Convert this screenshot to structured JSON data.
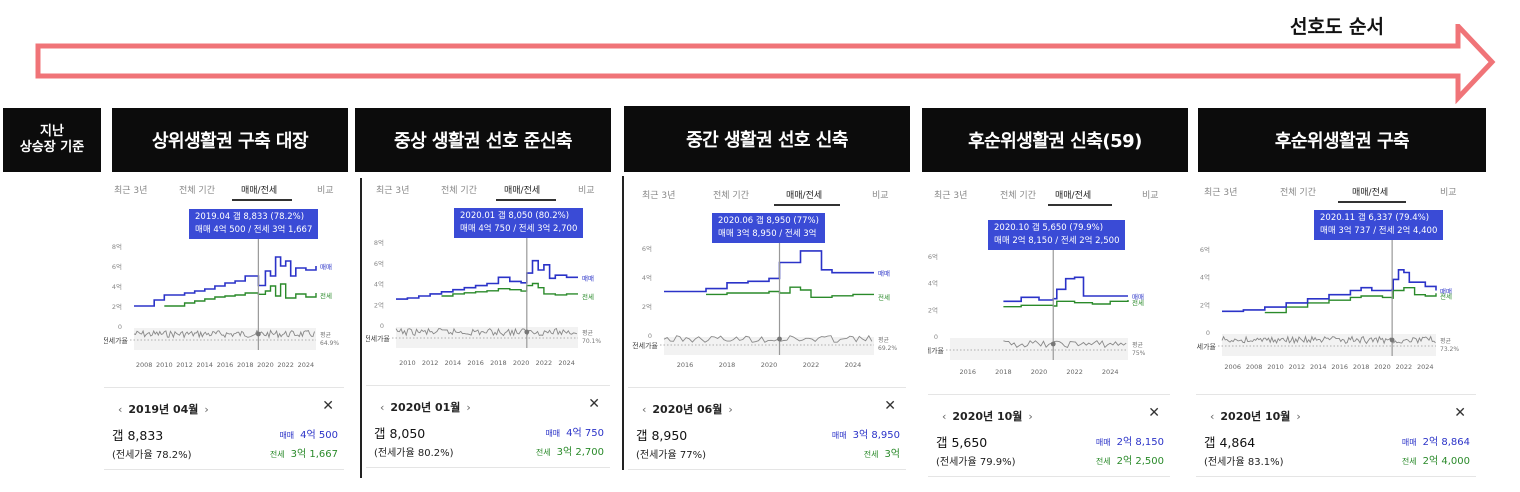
{
  "header": {
    "top_label": "선호도 순서",
    "left_label_line1": "지난",
    "left_label_line2": "상승장 기준"
  },
  "colors": {
    "sale": "#2b33c8",
    "jeonse": "#2a8a2a",
    "arrow": "#f07478",
    "header_bg": "#0c0c0c"
  },
  "panels": [
    {
      "title": "상위생활권 구축 대장",
      "tabs": [
        "최근 3년",
        "전체 기간",
        "매매/전세",
        "비교"
      ],
      "tooltip_line1": "2019.04  갭 8,833 (78.2%)",
      "tooltip_line2": "매매 4억 500 / 전세 3억 1,667",
      "nav_date": "2019년 04월",
      "gap": "갭 8,833",
      "ratio": "(전세가율 78.2%)",
      "sale_label": "매매",
      "sale_value": "4억 500",
      "jeonse_label": "전세",
      "jeonse_value": "3억 1,667",
      "legend_sale": "매매",
      "legend_jeonse": "전세",
      "ratio_label": "전세가율",
      "avg_label": "평균",
      "avg_value": "64.9%",
      "y_ticks": [
        "8억",
        "6억",
        "4억",
        "2억",
        "0"
      ],
      "x_ticks": [
        "2008",
        "2010",
        "2012",
        "2014",
        "2016",
        "2018",
        "2020",
        "2022",
        "2024"
      ]
    },
    {
      "title": "중상 생활권 선호 준신축",
      "tabs": [
        "최근 3년",
        "전체 기간",
        "매매/전세",
        "비교"
      ],
      "tooltip_line1": "2020.01  갭 8,050 (80.2%)",
      "tooltip_line2": "매매 4억 750 / 전세 3억 2,700",
      "nav_date": "2020년 01월",
      "gap": "갭 8,050",
      "ratio": "(전세가율 80.2%)",
      "sale_label": "매매",
      "sale_value": "4억 750",
      "jeonse_label": "전세",
      "jeonse_value": "3억 2,700",
      "legend_sale": "매매",
      "legend_jeonse": "전세",
      "ratio_label": "전세가율",
      "avg_label": "평균",
      "avg_value": "70.1%",
      "y_ticks": [
        "8억",
        "6억",
        "4억",
        "2억",
        "0"
      ],
      "x_ticks": [
        "2010",
        "2012",
        "2014",
        "2016",
        "2018",
        "2020",
        "2022",
        "2024"
      ]
    },
    {
      "title": "중간 생활권 선호 신축",
      "tabs": [
        "최근 3년",
        "전체 기간",
        "매매/전세",
        "비교"
      ],
      "tooltip_line1": "2020.06  갭 8,950 (77%)",
      "tooltip_line2": "매매 3억 8,950 / 전세 3억",
      "nav_date": "2020년 06월",
      "gap": "갭 8,950",
      "ratio": "(전세가율 77%)",
      "sale_label": "매매",
      "sale_value": "3억 8,950",
      "jeonse_label": "전세",
      "jeonse_value": "3억",
      "legend_sale": "매매",
      "legend_jeonse": "전세",
      "ratio_label": "전세가율",
      "avg_label": "평균",
      "avg_value": "69.2%",
      "y_ticks": [
        "6억",
        "4억",
        "2억",
        "0"
      ],
      "x_ticks": [
        "2016",
        "2018",
        "2020",
        "2022",
        "2024"
      ]
    },
    {
      "title": "후순위생활권 신축(59)",
      "tabs": [
        "최근 3년",
        "전체 기간",
        "매매/전세",
        "비교"
      ],
      "tooltip_line1": "2020.10  갭 5,650 (79.9%)",
      "tooltip_line2": "매매 2억 8,150 / 전세 2억 2,500",
      "nav_date": "2020년 10월",
      "gap": "갭 5,650",
      "ratio": "(전세가율 79.9%)",
      "sale_label": "매매",
      "sale_value": "2억 8,150",
      "jeonse_label": "전세",
      "jeonse_value": "2억 2,500",
      "legend_sale": "매매",
      "legend_jeonse": "전세",
      "ratio_label": "전세가율",
      "avg_label": "평균",
      "avg_value": "75%",
      "y_ticks": [
        "6억",
        "4억",
        "2억",
        "0"
      ],
      "x_ticks": [
        "2016",
        "2018",
        "2020",
        "2022",
        "2024"
      ]
    },
    {
      "title": "후순위생활권 구축",
      "tabs": [
        "최근 3년",
        "전체 기간",
        "매매/전세",
        "비교"
      ],
      "tooltip_line1": "2020.11  갭 6,337 (79.4%)",
      "tooltip_line2": "매매 3억 737 / 전세 2억 4,400",
      "nav_date": "2020년 10월",
      "gap": "갭 4,864",
      "ratio": "(전세가율 83.1%)",
      "sale_label": "매매",
      "sale_value": "2억 8,864",
      "jeonse_label": "전세",
      "jeonse_value": "2억 4,000",
      "legend_sale": "매매",
      "legend_jeonse": "전세",
      "ratio_label": "전세가율",
      "avg_label": "평균",
      "avg_value": "73.2%",
      "y_ticks": [
        "6억",
        "4억",
        "2억",
        "0"
      ],
      "x_ticks": [
        "2006",
        "2008",
        "2010",
        "2012",
        "2014",
        "2016",
        "2018",
        "2020",
        "2022",
        "2024"
      ]
    }
  ],
  "chart_data": [
    {
      "type": "line",
      "title": "상위생활권 구축 대장",
      "ylim": [
        0,
        8
      ],
      "xlim": [
        2007,
        2025
      ],
      "y_unit": "억",
      "series": [
        {
          "name": "매매",
          "x": [
            2007,
            2009,
            2010,
            2012,
            2013,
            2014,
            2015,
            2016,
            2017,
            2018,
            2019.3,
            2020,
            2020.5,
            2021,
            2021.5,
            2022,
            2022.5,
            2023,
            2024,
            2025
          ],
          "values": [
            2.0,
            2.6,
            3.1,
            3.3,
            3.5,
            3.7,
            4.0,
            4.3,
            4.5,
            5.0,
            4.05,
            5.5,
            5.0,
            6.9,
            6.0,
            6.5,
            5.0,
            5.8,
            5.6,
            6.0
          ]
        },
        {
          "name": "전세",
          "x": [
            2010,
            2012,
            2013,
            2014,
            2015,
            2016,
            2017,
            2018,
            2019.3,
            2020,
            2020.5,
            2021,
            2021.5,
            2022,
            2023,
            2024,
            2025
          ],
          "values": [
            2.0,
            2.3,
            2.5,
            2.7,
            2.9,
            3.0,
            3.1,
            3.3,
            3.17,
            3.5,
            4.0,
            3.0,
            4.2,
            2.8,
            3.2,
            2.9,
            3.3
          ]
        }
      ]
    },
    {
      "type": "line",
      "title": "중상 생활권 선호 준신축",
      "ylim": [
        0,
        8
      ],
      "xlim": [
        2009,
        2025
      ],
      "y_unit": "억",
      "series": [
        {
          "name": "매매",
          "x": [
            2009,
            2010,
            2011,
            2012,
            2013,
            2014,
            2015,
            2016,
            2017,
            2018,
            2019,
            2020,
            2020.5,
            2021,
            2021.5,
            2022,
            2022.5,
            2023,
            2024,
            2025
          ],
          "values": [
            2.5,
            2.6,
            2.8,
            3.0,
            3.2,
            3.4,
            3.6,
            3.8,
            4.0,
            4.6,
            4.2,
            4.07,
            5.0,
            6.2,
            5.3,
            5.8,
            4.5,
            4.8,
            4.6,
            4.6
          ]
        },
        {
          "name": "전세",
          "x": [
            2013,
            2014,
            2015,
            2016,
            2017,
            2018,
            2019,
            2020,
            2020.5,
            2021,
            2021.5,
            2022,
            2023,
            2024,
            2025
          ],
          "values": [
            2.8,
            3.0,
            3.1,
            3.2,
            3.3,
            3.5,
            3.4,
            3.27,
            3.8,
            4.0,
            3.6,
            3.0,
            2.9,
            3.0,
            3.0
          ]
        }
      ]
    },
    {
      "type": "line",
      "title": "중간 생활권 선호 신축",
      "ylim": [
        0,
        6
      ],
      "xlim": [
        2015,
        2025
      ],
      "y_unit": "억",
      "series": [
        {
          "name": "매매",
          "x": [
            2015,
            2017,
            2018,
            2019,
            2020,
            2020.5,
            2021,
            2021.5,
            2022,
            2022.5,
            2023,
            2024,
            2025
          ],
          "values": [
            3.0,
            3.2,
            3.6,
            3.7,
            3.9,
            5.0,
            5.0,
            5.8,
            5.8,
            4.5,
            4.3,
            4.3,
            4.3
          ]
        },
        {
          "name": "전세",
          "x": [
            2017,
            2018,
            2019,
            2020,
            2020.5,
            2021,
            2021.5,
            2022,
            2023,
            2024,
            2025
          ],
          "values": [
            2.8,
            2.9,
            2.9,
            3.0,
            2.9,
            3.3,
            3.1,
            2.6,
            2.7,
            2.8,
            2.8
          ]
        }
      ]
    },
    {
      "type": "line",
      "title": "후순위생활권 신축(59)",
      "ylim": [
        0,
        6
      ],
      "xlim": [
        2015,
        2025
      ],
      "y_unit": "억",
      "series": [
        {
          "name": "매매",
          "x": [
            2018,
            2019,
            2020,
            2020.8,
            2021,
            2021.5,
            2022,
            2022.5,
            2023,
            2024,
            2025
          ],
          "values": [
            2.6,
            2.9,
            2.7,
            2.8,
            3.5,
            4.3,
            4.4,
            3.0,
            3.0,
            3.0,
            3.0
          ]
        },
        {
          "name": "전세",
          "x": [
            2018,
            2019,
            2020,
            2020.8,
            2021,
            2022,
            2023,
            2024,
            2025
          ],
          "values": [
            2.2,
            2.3,
            2.3,
            2.25,
            2.6,
            2.5,
            2.4,
            2.6,
            2.7
          ]
        }
      ]
    },
    {
      "type": "line",
      "title": "후순위생활권 구축",
      "ylim": [
        0,
        6
      ],
      "xlim": [
        2005,
        2025
      ],
      "y_unit": "억",
      "series": [
        {
          "name": "매매",
          "x": [
            2005,
            2007,
            2009,
            2011,
            2013,
            2015,
            2017,
            2018,
            2019,
            2020,
            2020.9,
            2021,
            2021.5,
            2022,
            2022.5,
            2023,
            2024,
            2025
          ],
          "values": [
            1.5,
            1.6,
            1.8,
            2.1,
            2.4,
            2.7,
            3.0,
            3.2,
            3.0,
            3.0,
            3.07,
            3.8,
            4.5,
            4.3,
            3.6,
            3.6,
            3.3,
            3.0
          ]
        },
        {
          "name": "전세",
          "x": [
            2009,
            2011,
            2013,
            2015,
            2017,
            2018,
            2019,
            2020,
            2020.9,
            2021,
            2022,
            2023,
            2024,
            2025
          ],
          "values": [
            1.4,
            1.8,
            2.1,
            2.3,
            2.5,
            2.6,
            2.6,
            2.5,
            2.44,
            3.0,
            3.2,
            2.7,
            2.6,
            2.8
          ]
        }
      ]
    }
  ]
}
